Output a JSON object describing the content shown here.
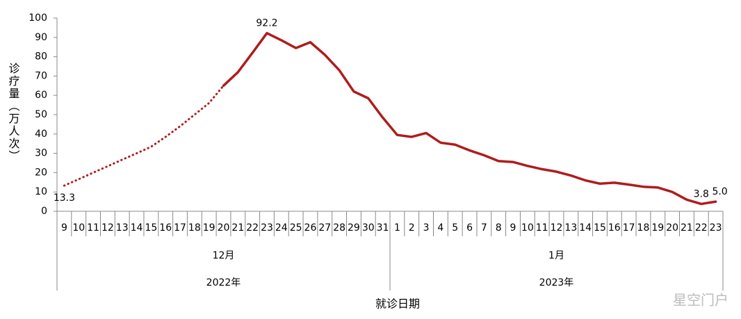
{
  "chart_data": {
    "type": "line",
    "ylabel": "诊疗量（万人次）",
    "xlabel": "就诊日期",
    "watermark": "星空门户",
    "categories": [
      "9",
      "10",
      "11",
      "12",
      "13",
      "14",
      "15",
      "16",
      "17",
      "18",
      "19",
      "20",
      "21",
      "22",
      "23",
      "24",
      "25",
      "26",
      "27",
      "28",
      "29",
      "30",
      "31",
      "1",
      "2",
      "3",
      "4",
      "5",
      "6",
      "7",
      "8",
      "9",
      "10",
      "11",
      "12",
      "13",
      "14",
      "15",
      "16",
      "17",
      "18",
      "19",
      "20",
      "21",
      "22",
      "23"
    ],
    "months": [
      "12月",
      "1月"
    ],
    "years": [
      "2022年",
      "2023年"
    ],
    "series": [
      {
        "color": "#b01c1c",
        "style": "dotted",
        "values": [
          13.3,
          16.6,
          20,
          23.3,
          26.7,
          30,
          33.4,
          38.5,
          44,
          50,
          56,
          65,
          null,
          null,
          null,
          null,
          null,
          null,
          null,
          null,
          null,
          null,
          null,
          null,
          null,
          null,
          null,
          null,
          null,
          null,
          null,
          null,
          null,
          null,
          null,
          null,
          null,
          null,
          null,
          null,
          null,
          null,
          null,
          null,
          null,
          null
        ],
        "value_labels": [
          "13.3",
          null,
          null,
          null,
          null,
          null,
          null,
          null,
          null,
          null,
          null,
          null,
          null,
          null,
          null,
          null,
          null,
          null,
          null,
          null,
          null,
          null,
          null,
          null,
          null,
          null,
          null,
          null,
          null,
          null,
          null,
          null,
          null,
          null,
          null,
          null,
          null,
          null,
          null,
          null,
          null,
          null,
          null,
          null,
          null,
          null
        ]
      },
      {
        "color": "#b01c1c",
        "style": "solid",
        "values": [
          null,
          null,
          null,
          null,
          null,
          null,
          null,
          null,
          null,
          null,
          null,
          65,
          72,
          82,
          92.2,
          88.5,
          84.5,
          87.5,
          81,
          73,
          62,
          58.5,
          48.5,
          39.5,
          38.5,
          40.5,
          35.5,
          34.5,
          31.5,
          29,
          26,
          25.5,
          23.5,
          21.8,
          20.5,
          18.5,
          16,
          14.3,
          14.8,
          13.8,
          12.7,
          12.3,
          10,
          6,
          3.8,
          5
        ],
        "value_labels": [
          null,
          null,
          null,
          null,
          null,
          null,
          null,
          null,
          null,
          null,
          null,
          null,
          null,
          null,
          "92.2",
          null,
          null,
          null,
          null,
          null,
          null,
          null,
          null,
          null,
          null,
          null,
          null,
          null,
          null,
          null,
          null,
          null,
          null,
          null,
          null,
          null,
          null,
          null,
          null,
          null,
          null,
          null,
          null,
          null,
          "3.8",
          "5.0"
        ]
      }
    ],
    "ylim": [
      0,
      100
    ],
    "yticks": [
      0,
      10,
      20,
      30,
      40,
      50,
      60,
      70,
      80,
      90,
      100
    ],
    "grid": false
  }
}
